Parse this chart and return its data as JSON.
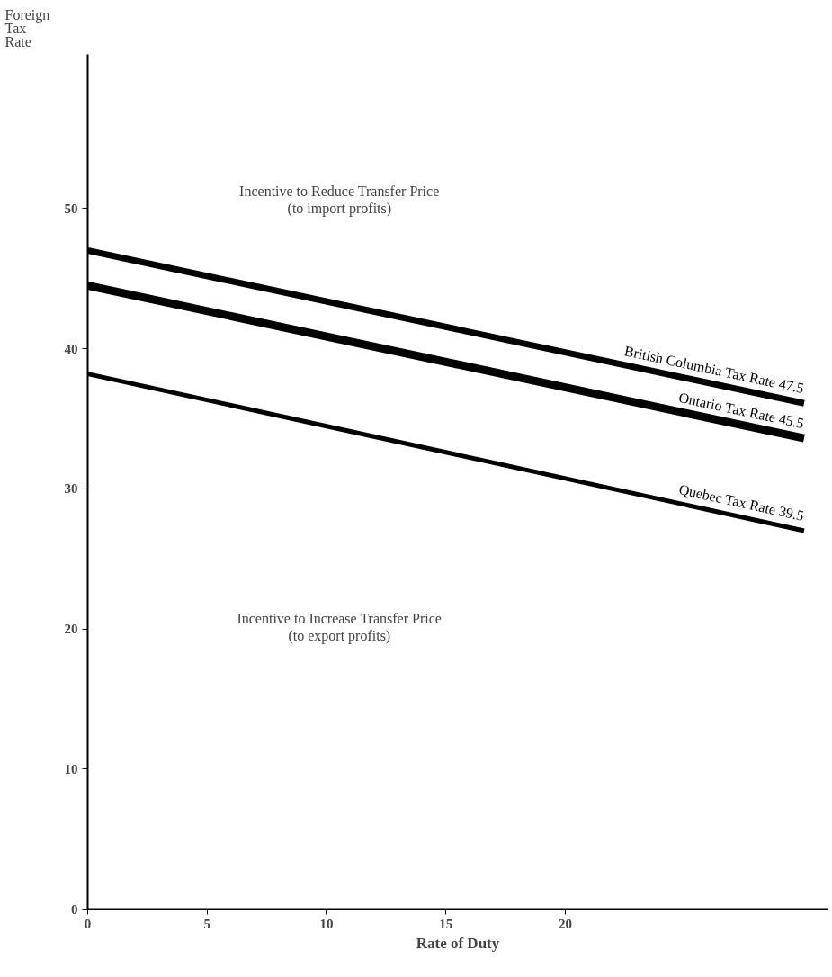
{
  "chart_data": {
    "type": "line",
    "xlabel": "Rate of Duty",
    "ylabel": "Foreign Tax Rate",
    "x": [
      0,
      30
    ],
    "series": [
      {
        "name": "British Columbia Tax Rate 47.5",
        "color": "#000000",
        "values": [
          47.0,
          36.1
        ]
      },
      {
        "name": "Ontario Tax Rate 45.5",
        "color": "#000000",
        "values": [
          44.5,
          33.6
        ]
      },
      {
        "name": "Quebec Tax Rate 39.5",
        "color": "#000000",
        "values": [
          38.2,
          27.0
        ]
      }
    ],
    "xlim": [
      0,
      31
    ],
    "ylim": [
      0,
      61
    ],
    "xticks": [
      0,
      5,
      10,
      15,
      20
    ],
    "yticks": [
      0,
      10,
      20,
      30,
      40,
      50
    ],
    "annotations": [
      "Incentive to Reduce Transfer Price\n(to import profits)",
      "Incentive to Increase Transfer Price\n(to export profits)"
    ],
    "grid": false,
    "legend": false,
    "line_style": "solid"
  }
}
